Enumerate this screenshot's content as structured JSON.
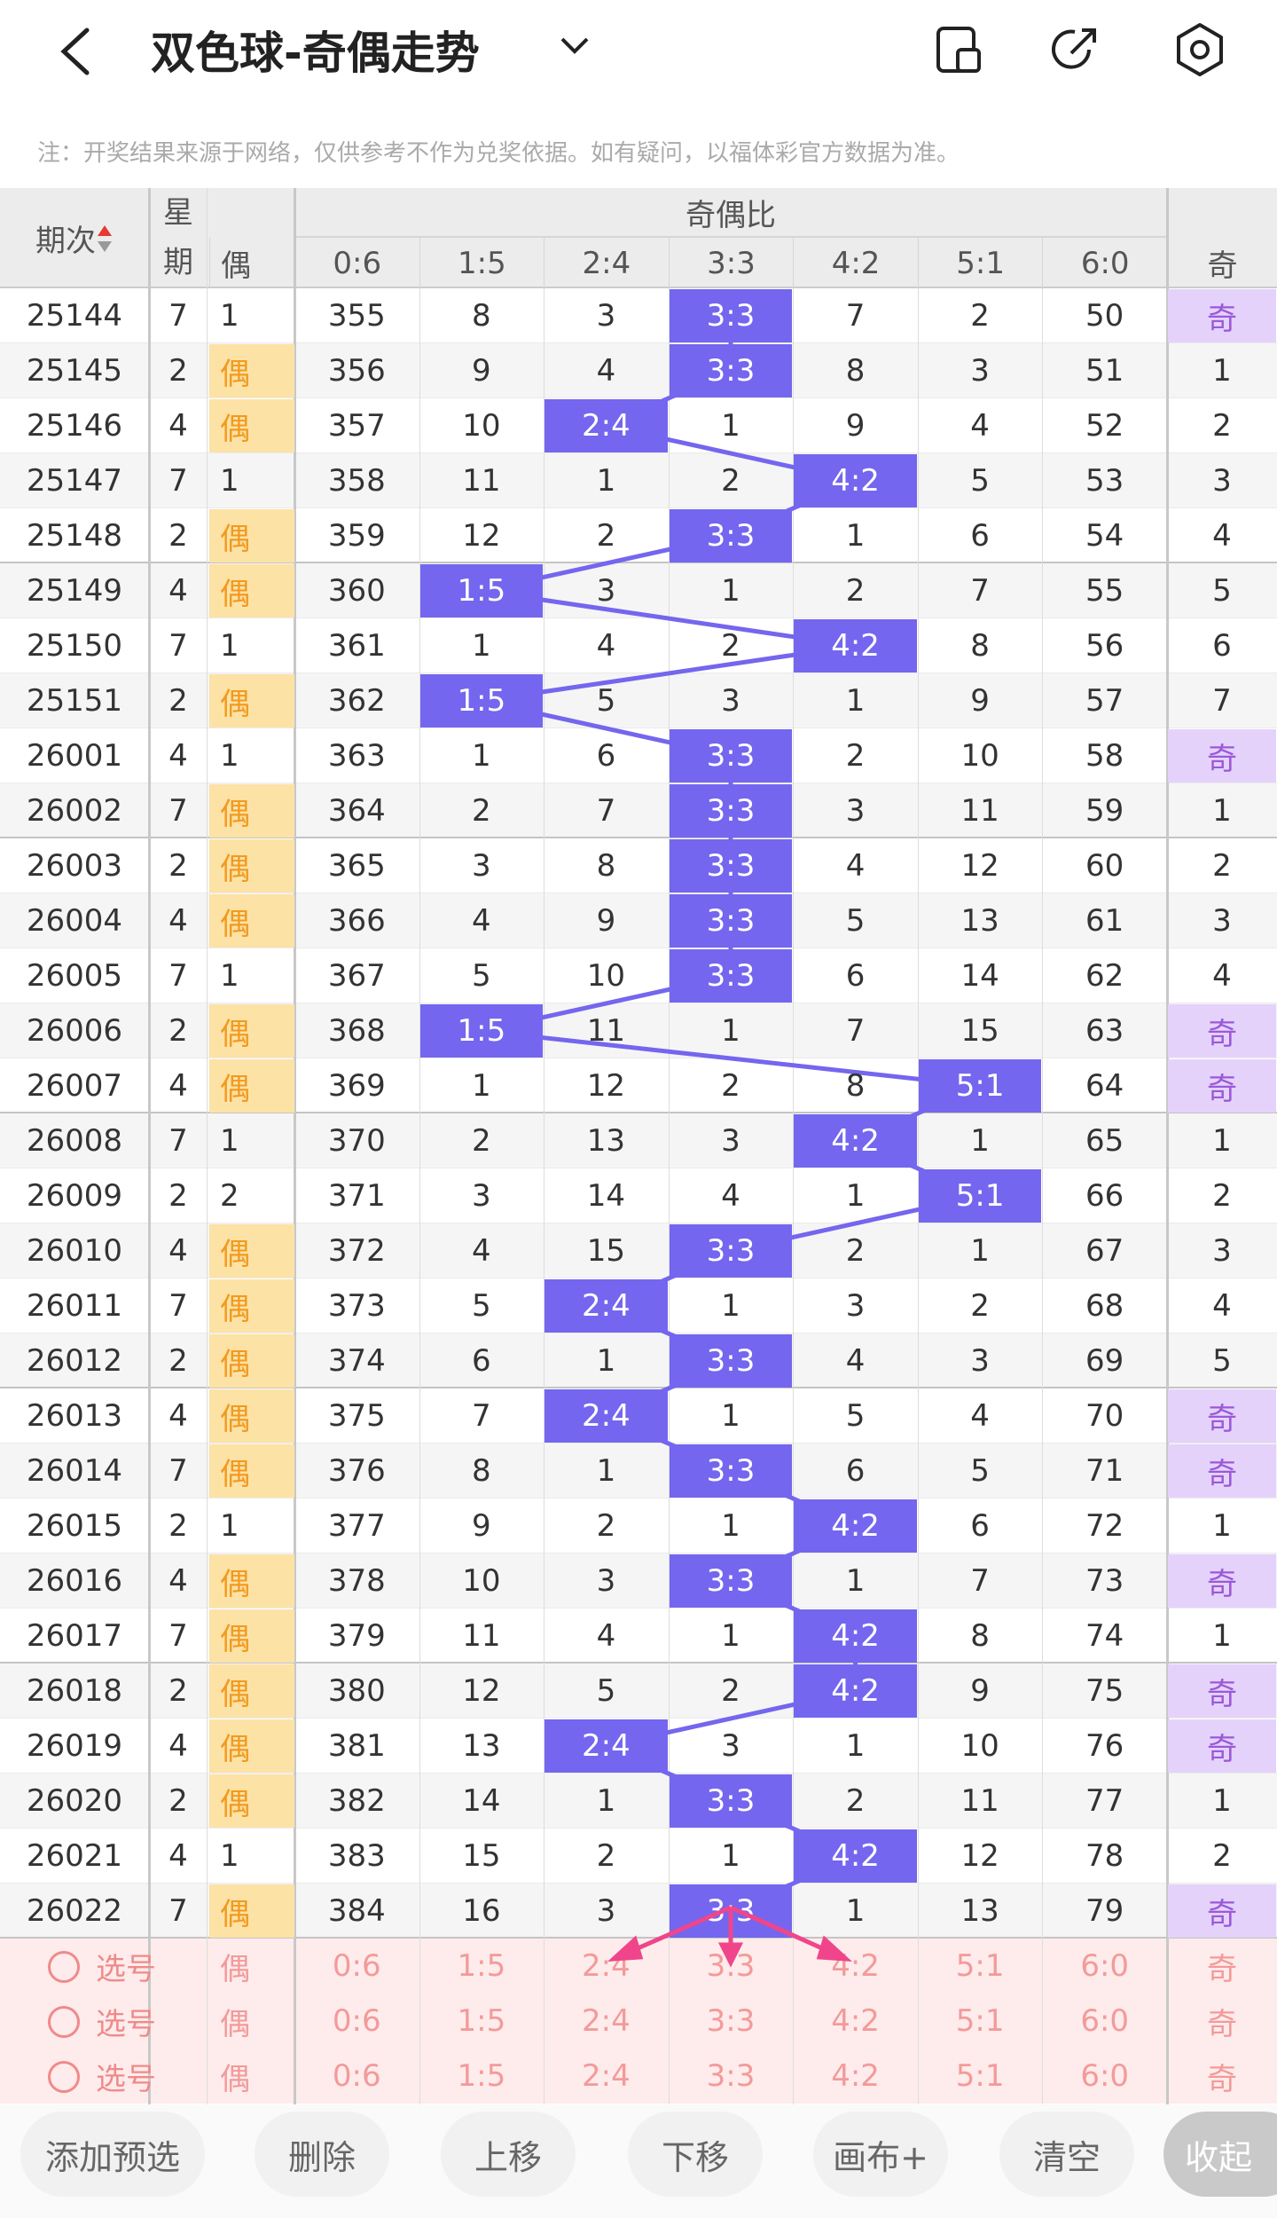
{
  "header": {
    "title": "双色球-奇偶走势"
  },
  "notice": "注：开奖结果来源于网络，仅供参考不作为兑奖依据。如有疑问，以福体彩官方数据为准。",
  "table": {
    "issue_header": "期次",
    "weekday_header": "星期",
    "group_header": "奇偶比",
    "columns": [
      "偶",
      "0:6",
      "1:5",
      "2:4",
      "3:3",
      "4:2",
      "5:1",
      "6:0",
      "奇"
    ],
    "rows": [
      [
        25144,
        7,
        1,
        355,
        8,
        3,
        "3:3",
        7,
        2,
        50,
        "奇"
      ],
      [
        25145,
        2,
        "偶",
        356,
        9,
        4,
        "3:3",
        8,
        3,
        51,
        1
      ],
      [
        25146,
        4,
        "偶",
        357,
        10,
        "2:4",
        1,
        9,
        4,
        52,
        2
      ],
      [
        25147,
        7,
        1,
        358,
        11,
        1,
        2,
        "4:2",
        5,
        53,
        3
      ],
      [
        25148,
        2,
        "偶",
        359,
        12,
        2,
        "3:3",
        1,
        6,
        54,
        4
      ],
      [
        25149,
        4,
        "偶",
        360,
        "1:5",
        3,
        1,
        2,
        7,
        55,
        5
      ],
      [
        25150,
        7,
        1,
        361,
        1,
        4,
        2,
        "4:2",
        8,
        56,
        6
      ],
      [
        25151,
        2,
        "偶",
        362,
        "1:5",
        5,
        3,
        1,
        9,
        57,
        7
      ],
      [
        26001,
        4,
        1,
        363,
        1,
        6,
        "3:3",
        2,
        10,
        58,
        "奇"
      ],
      [
        26002,
        7,
        "偶",
        364,
        2,
        7,
        "3:3",
        3,
        11,
        59,
        1
      ],
      [
        26003,
        2,
        "偶",
        365,
        3,
        8,
        "3:3",
        4,
        12,
        60,
        2
      ],
      [
        26004,
        4,
        "偶",
        366,
        4,
        9,
        "3:3",
        5,
        13,
        61,
        3
      ],
      [
        26005,
        7,
        1,
        367,
        5,
        10,
        "3:3",
        6,
        14,
        62,
        4
      ],
      [
        26006,
        2,
        "偶",
        368,
        "1:5",
        11,
        1,
        7,
        15,
        63,
        "奇"
      ],
      [
        26007,
        4,
        "偶",
        369,
        1,
        12,
        2,
        8,
        "5:1",
        64,
        "奇"
      ],
      [
        26008,
        7,
        1,
        370,
        2,
        13,
        3,
        "4:2",
        1,
        65,
        1
      ],
      [
        26009,
        2,
        2,
        371,
        3,
        14,
        4,
        1,
        "5:1",
        66,
        2
      ],
      [
        26010,
        4,
        "偶",
        372,
        4,
        15,
        "3:3",
        2,
        1,
        67,
        3
      ],
      [
        26011,
        7,
        "偶",
        373,
        5,
        "2:4",
        1,
        3,
        2,
        68,
        4
      ],
      [
        26012,
        2,
        "偶",
        374,
        6,
        1,
        "3:3",
        4,
        3,
        69,
        5
      ],
      [
        26013,
        4,
        "偶",
        375,
        7,
        "2:4",
        1,
        5,
        4,
        70,
        "奇"
      ],
      [
        26014,
        7,
        "偶",
        376,
        8,
        1,
        "3:3",
        6,
        5,
        71,
        "奇"
      ],
      [
        26015,
        2,
        1,
        377,
        9,
        2,
        1,
        "4:2",
        6,
        72,
        1
      ],
      [
        26016,
        4,
        "偶",
        378,
        10,
        3,
        "3:3",
        1,
        7,
        73,
        "奇"
      ],
      [
        26017,
        7,
        "偶",
        379,
        11,
        4,
        1,
        "4:2",
        8,
        74,
        1
      ],
      [
        26018,
        2,
        "偶",
        380,
        12,
        5,
        2,
        "4:2",
        9,
        75,
        "奇"
      ],
      [
        26019,
        4,
        "偶",
        381,
        13,
        "2:4",
        3,
        1,
        10,
        76,
        "奇"
      ],
      [
        26020,
        2,
        "偶",
        382,
        14,
        1,
        "3:3",
        2,
        11,
        77,
        1
      ],
      [
        26021,
        4,
        1,
        383,
        15,
        2,
        1,
        "4:2",
        12,
        78,
        2
      ],
      [
        26022,
        7,
        "偶",
        384,
        16,
        3,
        "3:3",
        1,
        13,
        79,
        "奇"
      ]
    ]
  },
  "preview": {
    "rows": [
      {
        "label": "选号",
        "cells": [
          "偶",
          "0:6",
          "1:5",
          "2:4",
          "3:3",
          "4:2",
          "5:1",
          "6:0",
          "奇"
        ]
      },
      {
        "label": "选号",
        "cells": [
          "偶",
          "0:6",
          "1:5",
          "2:4",
          "3:3",
          "4:2",
          "5:1",
          "6:0",
          "奇"
        ]
      },
      {
        "label": "选号",
        "cells": [
          "偶",
          "0:6",
          "1:5",
          "2:4",
          "3:3",
          "4:2",
          "5:1",
          "6:0",
          "奇"
        ]
      }
    ]
  },
  "toolbar": {
    "buttons": [
      "添加预选",
      "删除",
      "上移",
      "下移",
      "画布+",
      "清空",
      "收起"
    ]
  }
}
